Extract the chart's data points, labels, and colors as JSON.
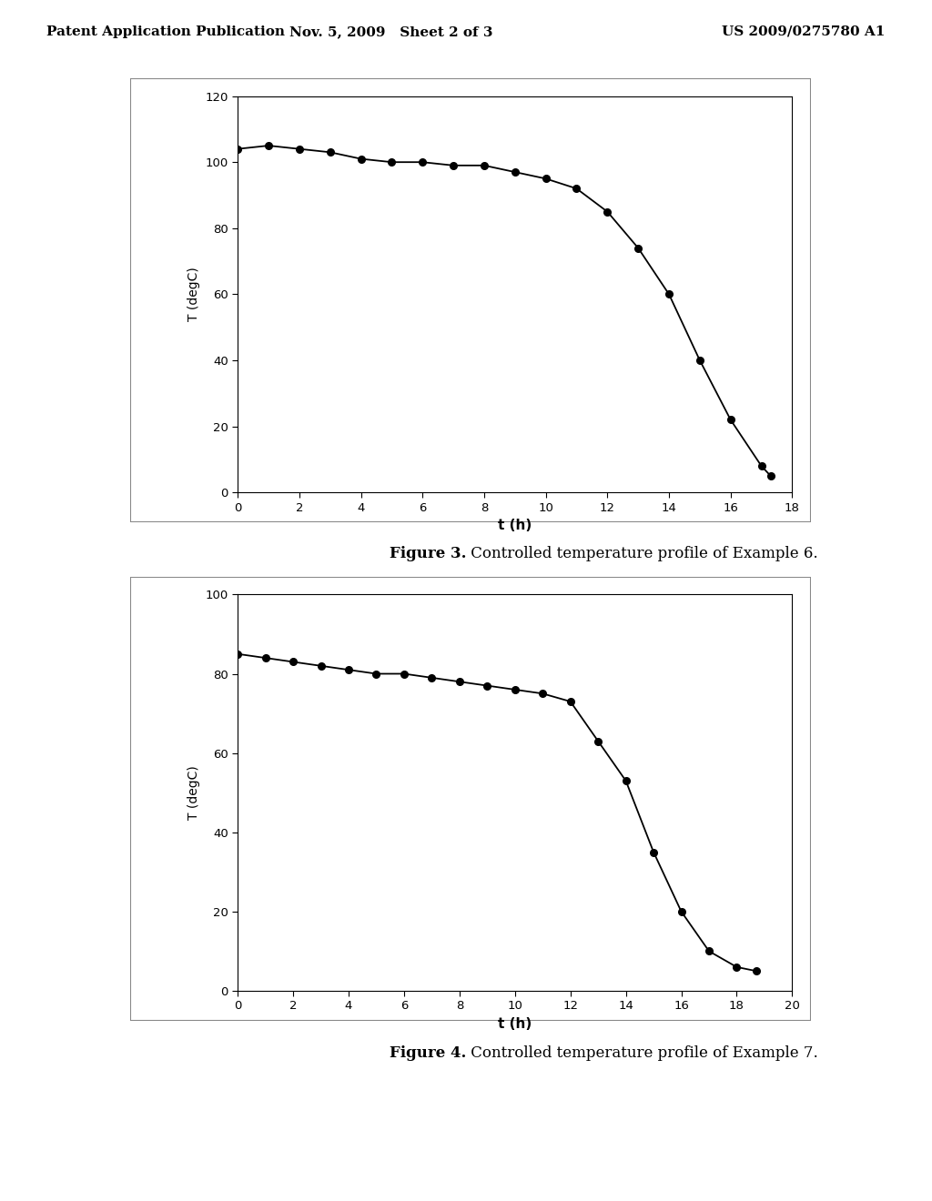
{
  "fig3": {
    "x": [
      0,
      1,
      2,
      3,
      4,
      5,
      6,
      7,
      8,
      9,
      10,
      11,
      12,
      13,
      14,
      15,
      16,
      17,
      17.3
    ],
    "y": [
      104,
      105,
      104,
      103,
      101,
      100,
      100,
      99,
      99,
      97,
      95,
      92,
      85,
      74,
      60,
      40,
      22,
      8,
      5
    ],
    "xlabel": "t (h)",
    "ylabel": "T (degC)",
    "xlim": [
      0,
      18
    ],
    "ylim": [
      0,
      120
    ],
    "xticks": [
      0,
      2,
      4,
      6,
      8,
      10,
      12,
      14,
      16,
      18
    ],
    "yticks": [
      0,
      20,
      40,
      60,
      80,
      100,
      120
    ],
    "caption_bold": "Figure 3.",
    "caption_normal": " Controlled temperature profile of Example 6."
  },
  "fig4": {
    "x": [
      0,
      1,
      2,
      3,
      4,
      5,
      6,
      7,
      8,
      9,
      10,
      11,
      12,
      13,
      14,
      15,
      16,
      17,
      18,
      18.7
    ],
    "y": [
      85,
      84,
      83,
      82,
      81,
      80,
      80,
      79,
      78,
      77,
      76,
      75,
      73,
      63,
      53,
      35,
      20,
      10,
      6,
      5
    ],
    "xlabel": "t (h)",
    "ylabel": "T (degC)",
    "xlim": [
      0,
      20
    ],
    "ylim": [
      0,
      100
    ],
    "xticks": [
      0,
      2,
      4,
      6,
      8,
      10,
      12,
      14,
      16,
      18,
      20
    ],
    "yticks": [
      0,
      20,
      40,
      60,
      80,
      100
    ],
    "caption_bold": "Figure 4.",
    "caption_normal": " Controlled temperature profile of Example 7."
  },
  "header_left": "Patent Application Publication",
  "header_middle": "Nov. 5, 2009   Sheet 2 of 3",
  "header_right": "US 2009/0275780 A1",
  "bg_color": "#ffffff",
  "line_color": "#000000",
  "marker_color": "#000000",
  "plot_bg": "#ffffff"
}
